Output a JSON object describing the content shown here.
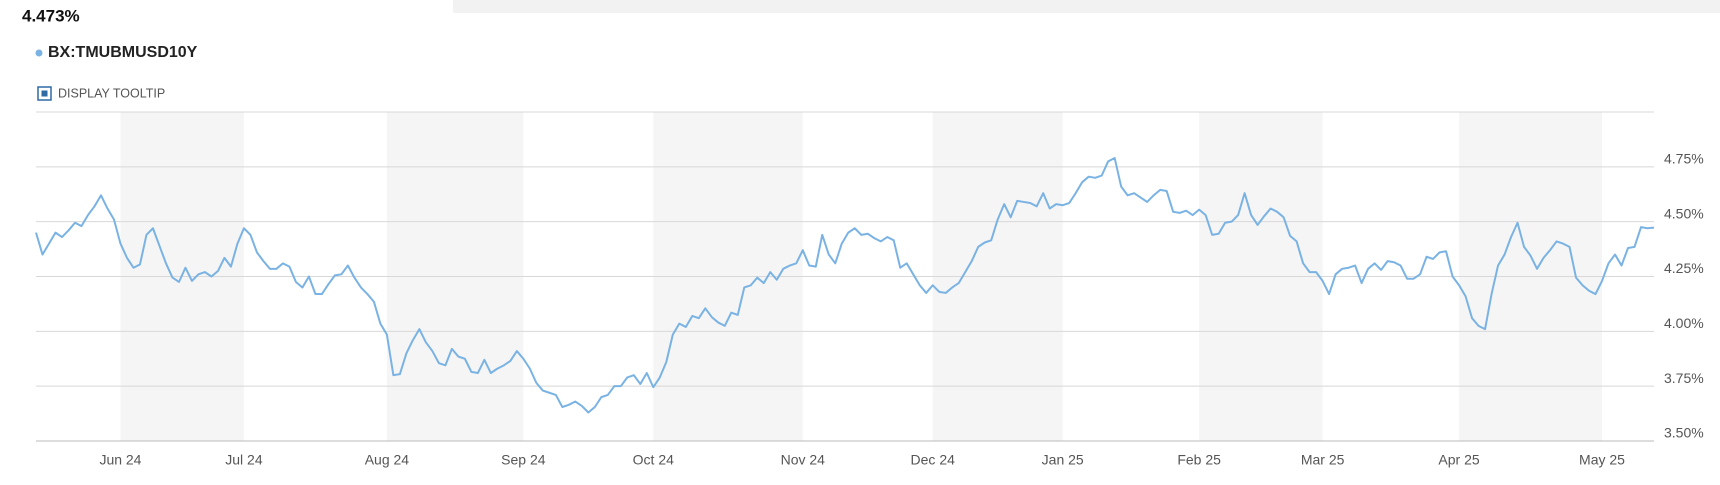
{
  "chart_data": {
    "type": "line",
    "last_value": "4.473%",
    "tooltip_toggle": "DISPLAY TOOLTIP",
    "categories": [
      null,
      null,
      null,
      null,
      null,
      null,
      null,
      null,
      null,
      null,
      null,
      null,
      null,
      "Jun 24",
      null,
      null,
      null,
      null,
      null,
      null,
      null,
      null,
      null,
      null,
      null,
      null,
      null,
      null,
      null,
      null,
      null,
      null,
      "Jul 24",
      null,
      null,
      null,
      null,
      null,
      null,
      null,
      null,
      null,
      null,
      null,
      null,
      null,
      null,
      null,
      null,
      null,
      null,
      null,
      null,
      null,
      "Aug 24",
      null,
      null,
      null,
      null,
      null,
      null,
      null,
      null,
      null,
      null,
      null,
      null,
      null,
      null,
      null,
      null,
      null,
      null,
      null,
      null,
      "Sep 24",
      null,
      null,
      null,
      null,
      null,
      null,
      null,
      null,
      null,
      null,
      null,
      null,
      null,
      null,
      null,
      null,
      null,
      null,
      null,
      "Oct 24",
      null,
      null,
      null,
      null,
      null,
      null,
      null,
      null,
      null,
      null,
      null,
      null,
      null,
      null,
      null,
      null,
      null,
      null,
      null,
      null,
      null,
      null,
      "Nov 24",
      null,
      null,
      null,
      null,
      null,
      null,
      null,
      null,
      null,
      null,
      null,
      null,
      null,
      null,
      null,
      null,
      null,
      null,
      null,
      "Dec 24",
      null,
      null,
      null,
      null,
      null,
      null,
      null,
      null,
      null,
      null,
      null,
      null,
      null,
      null,
      null,
      null,
      null,
      null,
      null,
      "Jan 25",
      null,
      null,
      null,
      null,
      null,
      null,
      null,
      null,
      null,
      null,
      null,
      null,
      null,
      null,
      null,
      null,
      null,
      null,
      null,
      null,
      "Feb 25",
      null,
      null,
      null,
      null,
      null,
      null,
      null,
      null,
      null,
      null,
      null,
      null,
      null,
      null,
      null,
      null,
      null,
      null,
      "Mar 25",
      null,
      null,
      null,
      null,
      null,
      null,
      null,
      null,
      null,
      null,
      null,
      null,
      null,
      null,
      null,
      null,
      null,
      null,
      null,
      null,
      "Apr 25",
      null,
      null,
      null,
      null,
      null,
      null,
      null,
      null,
      null,
      null,
      null,
      null,
      null,
      null,
      null,
      null,
      null,
      null,
      null,
      null,
      null,
      "May 25",
      null,
      null,
      null,
      null,
      null,
      null,
      null,
      null
    ],
    "series": [
      {
        "name": "BX:TMUBMUSD10Y",
        "color": "#7ab3e3",
        "values": [
          4.45,
          4.35,
          4.4,
          4.45,
          4.43,
          4.46,
          4.495,
          4.48,
          4.53,
          4.57,
          4.62,
          4.56,
          4.51,
          4.4,
          4.335,
          4.29,
          4.305,
          4.44,
          4.47,
          4.39,
          4.31,
          4.245,
          4.225,
          4.29,
          4.23,
          4.26,
          4.27,
          4.25,
          4.275,
          4.335,
          4.295,
          4.4,
          4.47,
          4.44,
          4.36,
          4.32,
          4.285,
          4.285,
          4.31,
          4.295,
          4.225,
          4.2,
          4.25,
          4.17,
          4.17,
          4.215,
          4.255,
          4.26,
          4.3,
          4.245,
          4.2,
          4.17,
          4.135,
          4.035,
          3.985,
          3.8,
          3.805,
          3.9,
          3.96,
          4.01,
          3.95,
          3.91,
          3.855,
          3.845,
          3.92,
          3.885,
          3.875,
          3.815,
          3.81,
          3.87,
          3.81,
          3.83,
          3.845,
          3.865,
          3.91,
          3.875,
          3.83,
          3.765,
          3.73,
          3.72,
          3.71,
          3.655,
          3.665,
          3.68,
          3.66,
          3.63,
          3.655,
          3.7,
          3.71,
          3.75,
          3.75,
          3.79,
          3.8,
          3.76,
          3.81,
          3.745,
          3.79,
          3.86,
          3.985,
          4.035,
          4.02,
          4.07,
          4.06,
          4.105,
          4.065,
          4.04,
          4.025,
          4.085,
          4.075,
          4.2,
          4.21,
          4.245,
          4.22,
          4.27,
          4.235,
          4.285,
          4.3,
          4.31,
          4.37,
          4.3,
          4.295,
          4.44,
          4.35,
          4.31,
          4.4,
          4.45,
          4.47,
          4.44,
          4.445,
          4.425,
          4.41,
          4.43,
          4.415,
          4.29,
          4.31,
          4.26,
          4.21,
          4.175,
          4.21,
          4.18,
          4.175,
          4.2,
          4.22,
          4.27,
          4.32,
          4.385,
          4.405,
          4.415,
          4.51,
          4.58,
          4.52,
          4.595,
          4.59,
          4.585,
          4.57,
          4.63,
          4.56,
          4.58,
          4.575,
          4.585,
          4.63,
          4.68,
          4.705,
          4.7,
          4.71,
          4.775,
          4.79,
          4.66,
          4.62,
          4.63,
          4.61,
          4.59,
          4.62,
          4.645,
          4.64,
          4.545,
          4.54,
          4.55,
          4.53,
          4.555,
          4.53,
          4.44,
          4.445,
          4.495,
          4.5,
          4.53,
          4.63,
          4.53,
          4.485,
          4.525,
          4.56,
          4.545,
          4.52,
          4.435,
          4.41,
          4.31,
          4.27,
          4.27,
          4.23,
          4.17,
          4.26,
          4.285,
          4.29,
          4.3,
          4.22,
          4.285,
          4.31,
          4.28,
          4.32,
          4.315,
          4.3,
          4.24,
          4.24,
          4.26,
          4.34,
          4.33,
          4.36,
          4.365,
          4.25,
          4.21,
          4.16,
          4.06,
          4.025,
          4.01,
          4.17,
          4.3,
          4.35,
          4.43,
          4.495,
          4.385,
          4.345,
          4.285,
          4.335,
          4.37,
          4.41,
          4.4,
          4.385,
          4.245,
          4.21,
          4.185,
          4.17,
          4.23,
          4.31,
          4.35,
          4.3,
          4.38,
          4.385,
          4.475,
          4.47,
          4.473
        ]
      }
    ],
    "ylim": [
      3.5,
      5.0
    ],
    "yticks": [
      {
        "value": 3.5,
        "label": "3.50%"
      },
      {
        "value": 3.75,
        "label": "3.75%"
      },
      {
        "value": 4.0,
        "label": "4.00%"
      },
      {
        "value": 4.25,
        "label": "4.25%"
      },
      {
        "value": 4.5,
        "label": "4.50%"
      },
      {
        "value": 4.75,
        "label": "4.75%"
      }
    ],
    "grid": true
  }
}
